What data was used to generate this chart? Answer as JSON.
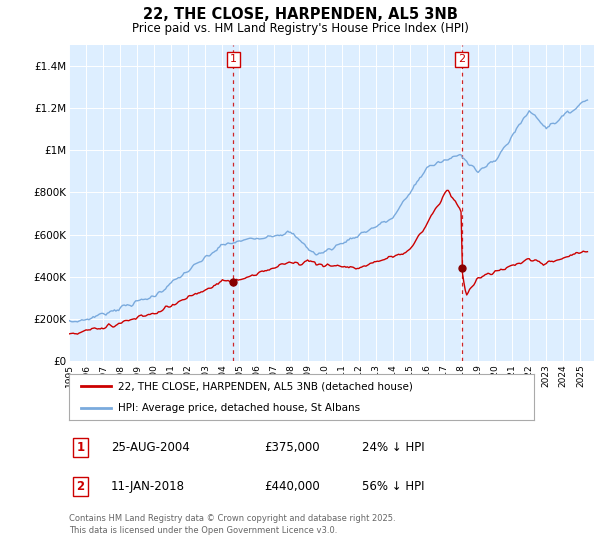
{
  "title": "22, THE CLOSE, HARPENDEN, AL5 3NB",
  "subtitle": "Price paid vs. HM Land Registry's House Price Index (HPI)",
  "ylim": [
    0,
    1500000
  ],
  "yticks": [
    0,
    200000,
    400000,
    600000,
    800000,
    1000000,
    1200000,
    1400000
  ],
  "ytick_labels": [
    "£0",
    "£200K",
    "£400K",
    "£600K",
    "£800K",
    "£1M",
    "£1.2M",
    "£1.4M"
  ],
  "xstart_year": 1995,
  "xend_year": 2025,
  "sale1_date": 2004.65,
  "sale1_price": 375000,
  "sale2_date": 2018.04,
  "sale2_price": 440000,
  "line_color_red": "#cc0000",
  "line_color_blue": "#7aaadd",
  "dot_color": "#880000",
  "vline_color": "#cc0000",
  "background_color": "#ddeeff",
  "legend_label_red": "22, THE CLOSE, HARPENDEN, AL5 3NB (detached house)",
  "legend_label_blue": "HPI: Average price, detached house, St Albans",
  "table_row1": [
    "1",
    "25-AUG-2004",
    "£375,000",
    "24% ↓ HPI"
  ],
  "table_row2": [
    "2",
    "11-JAN-2018",
    "£440,000",
    "56% ↓ HPI"
  ],
  "footer": "Contains HM Land Registry data © Crown copyright and database right 2025.\nThis data is licensed under the Open Government Licence v3.0."
}
